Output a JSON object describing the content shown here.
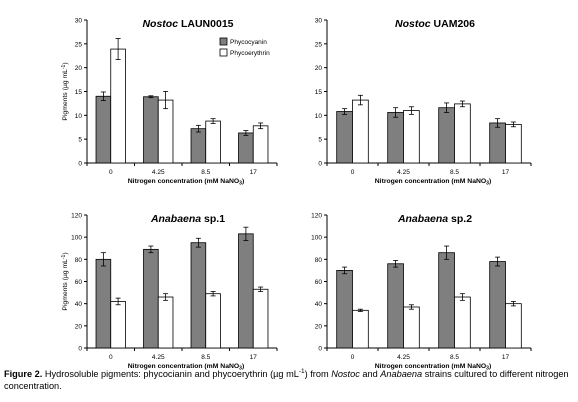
{
  "chart_data": [
    {
      "type": "bar",
      "title_italic": "Nostoc",
      "title_rest": " LAUN0015",
      "ylabel": "Pigments (µg mL",
      "ylabel_sup": "-1",
      "ylabel_end": ")",
      "xlabel": "Nitrogen concentration (mM NaNO",
      "xlabel_sub": "3",
      "xlabel_end": ")",
      "categories": [
        "0",
        "4.25",
        "8.5",
        "17"
      ],
      "ylim": [
        0,
        30
      ],
      "yticks": [
        "0",
        "5",
        "10",
        "15",
        "20",
        "25",
        "30"
      ],
      "legend": "top-right",
      "series": [
        {
          "name": "Phycocyanin",
          "values": [
            14.0,
            13.9,
            7.2,
            6.3
          ],
          "errors": [
            0.9,
            0.2,
            0.7,
            0.5
          ]
        },
        {
          "name": "Phycoerythrin",
          "values": [
            23.9,
            13.2,
            8.8,
            7.8
          ],
          "errors": [
            2.2,
            1.8,
            0.5,
            0.6
          ]
        }
      ]
    },
    {
      "type": "bar",
      "title_italic": "Nostoc",
      "title_rest": " UAM206",
      "ylabel": "",
      "xlabel": "Nitrogen concentration (mM NaNO",
      "xlabel_sub": "3",
      "xlabel_end": ")",
      "categories": [
        "0",
        "4.25",
        "8.5",
        "17"
      ],
      "ylim": [
        0,
        30
      ],
      "yticks": [
        "0",
        "5",
        "10",
        "15",
        "20",
        "25",
        "30"
      ],
      "series": [
        {
          "name": "Phycocyanin",
          "values": [
            10.8,
            10.6,
            11.6,
            8.4
          ],
          "errors": [
            0.6,
            1.0,
            1.0,
            0.9
          ]
        },
        {
          "name": "Phycoerythrin",
          "values": [
            13.2,
            11.0,
            12.4,
            8.1
          ],
          "errors": [
            1.0,
            0.8,
            0.6,
            0.5
          ]
        }
      ]
    },
    {
      "type": "bar",
      "title_italic": "Anabaena",
      "title_rest": " sp.1",
      "ylabel": "Pigments (µg mL",
      "ylabel_sup": "-1",
      "ylabel_end": ")",
      "xlabel": "Nitrogen concentration (mM NaNO",
      "xlabel_sub": "3",
      "xlabel_end": ")",
      "categories": [
        "0",
        "4.25",
        "8.5",
        "17"
      ],
      "ylim": [
        0,
        120
      ],
      "yticks": [
        "0",
        "20",
        "40",
        "60",
        "80",
        "100",
        "120"
      ],
      "series": [
        {
          "name": "Phycocyanin",
          "values": [
            80,
            89,
            95,
            103
          ],
          "errors": [
            6,
            3,
            4,
            6
          ]
        },
        {
          "name": "Phycoerythrin",
          "values": [
            42,
            46,
            49,
            53
          ],
          "errors": [
            3,
            3,
            2,
            2
          ]
        }
      ]
    },
    {
      "type": "bar",
      "title_italic": "Anabaena",
      "title_rest": " sp.2",
      "ylabel": "",
      "xlabel": "Nitrogen concentration (mM NaNO",
      "xlabel_sub": "3",
      "xlabel_end": ")",
      "categories": [
        "0",
        "4.25",
        "8.5",
        "17"
      ],
      "ylim": [
        0,
        120
      ],
      "yticks": [
        "0",
        "20",
        "40",
        "60",
        "80",
        "100",
        "120"
      ],
      "series": [
        {
          "name": "Phycocyanin",
          "values": [
            70,
            76,
            86,
            78
          ],
          "errors": [
            3,
            3,
            6,
            4
          ]
        },
        {
          "name": "Phycoerythrin",
          "values": [
            34,
            37,
            46,
            40
          ],
          "errors": [
            1,
            2,
            3,
            2
          ]
        }
      ]
    }
  ],
  "colors": {
    "phycocyanin": "#7f7f7f",
    "phycoerythrin": "#ffffff",
    "axis": "#000000"
  },
  "caption": {
    "label": "Figure 2.",
    "text_1": " Hydrosoluble pigments: phycocianin and phycoerythrin (µg mL",
    "text_sup": "-1",
    "text_2": ") from ",
    "italic_1": "Nostoc",
    "text_3": " and ",
    "italic_2": "Anabaena",
    "text_4": " strains cultured to different nitrogen concentration."
  }
}
